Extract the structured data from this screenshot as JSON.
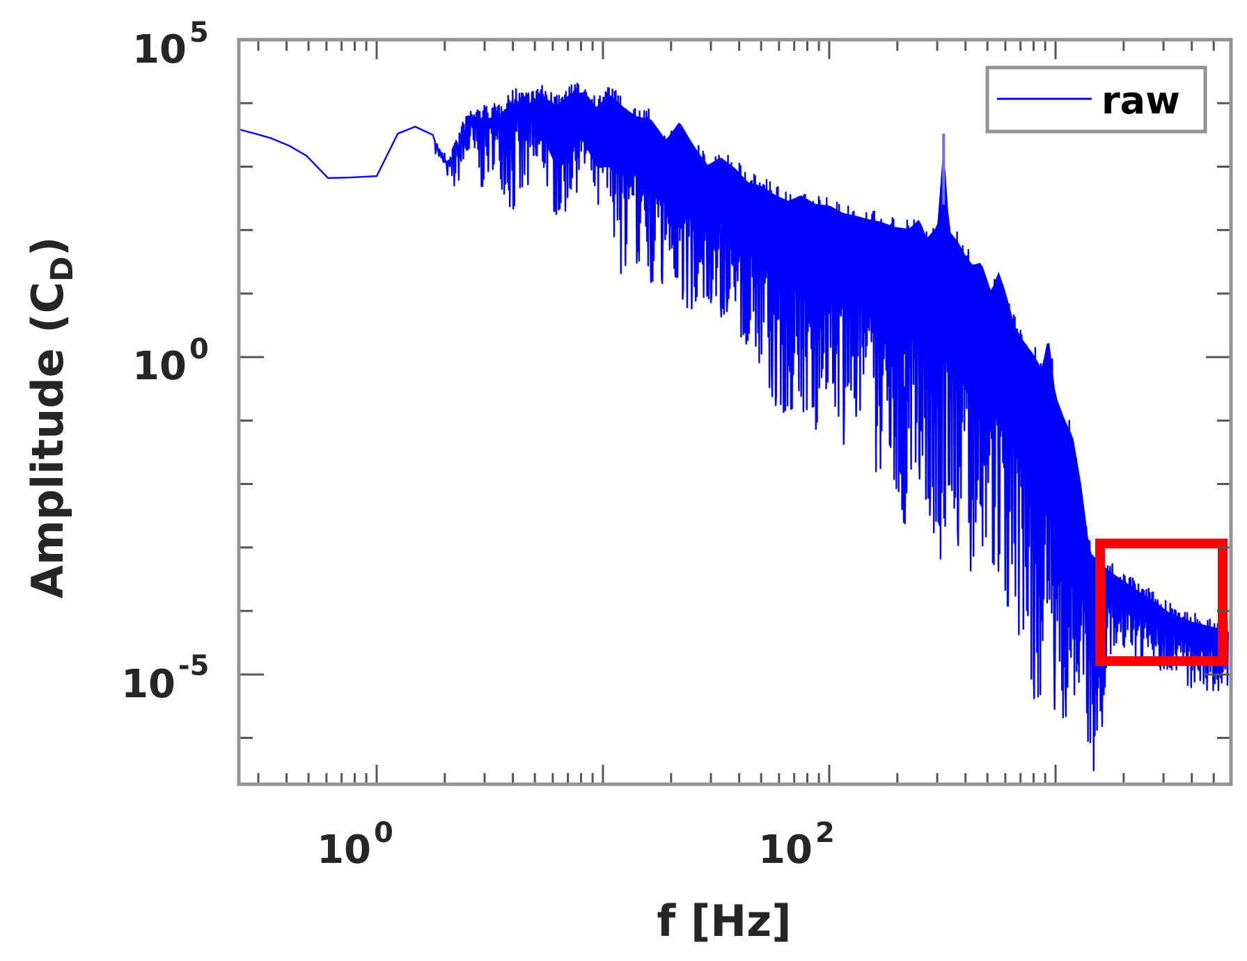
{
  "chart_data": {
    "type": "line",
    "title": "",
    "xlabel": "f [Hz]",
    "ylabel": "Amplitude (C_D)",
    "ylabel_main": "Amplitude (C",
    "ylabel_sub": "D",
    "ylabel_close": ")",
    "xscale": "log",
    "yscale": "log",
    "xlim": [
      0.246,
      5960
    ],
    "ylim_exponents": [
      -6.73,
      5
    ],
    "ylim": [
      1.86e-07,
      100000
    ],
    "grid": false,
    "legend": {
      "position": "upper right",
      "entries": [
        "raw"
      ]
    },
    "x_ticks": [
      {
        "base": "10",
        "exp": "0",
        "value": 1
      },
      {
        "base": "10",
        "exp": "2",
        "value": 100
      }
    ],
    "y_ticks": [
      {
        "base": "10",
        "exp": "5",
        "value": 100000
      },
      {
        "base": "10",
        "exp": "0",
        "value": 1
      },
      {
        "base": "10",
        "exp": "-5",
        "value": 1e-05
      }
    ],
    "series": [
      {
        "name": "raw",
        "color": "#0000ff",
        "note": "Log-log amplitude spectrum; points given as [f_Hz, log10(amplitude)] traced from the upper and lower envelope of a dense noisy trace",
        "upper_envelope": [
          [
            0.25,
            3.58
          ],
          [
            0.29,
            3.52
          ],
          [
            0.34,
            3.45
          ],
          [
            0.41,
            3.33
          ],
          [
            0.49,
            3.17
          ],
          [
            0.61,
            2.82
          ],
          [
            0.78,
            2.83
          ],
          [
            1.0,
            2.85
          ],
          [
            1.24,
            3.52
          ],
          [
            1.48,
            3.63
          ],
          [
            1.77,
            3.5
          ],
          [
            2.04,
            3.17
          ],
          [
            2.56,
            3.92
          ],
          [
            3.0,
            3.98
          ],
          [
            3.4,
            3.99
          ],
          [
            3.8,
            4.17
          ],
          [
            4.3,
            4.26
          ],
          [
            5.0,
            4.21
          ],
          [
            5.3,
            4.3
          ],
          [
            6.2,
            4.11
          ],
          [
            7.2,
            4.3
          ],
          [
            8.3,
            4.32
          ],
          [
            9.4,
            4.08
          ],
          [
            10.6,
            4.3
          ],
          [
            12.5,
            4.07
          ],
          [
            14.1,
            3.94
          ],
          [
            16.3,
            3.9
          ],
          [
            19.0,
            3.57
          ],
          [
            21.8,
            3.86
          ],
          [
            25.0,
            3.5
          ],
          [
            29.0,
            3.17
          ],
          [
            33.0,
            3.3
          ],
          [
            38.0,
            3.14
          ],
          [
            44.0,
            2.9
          ],
          [
            50.0,
            2.85
          ],
          [
            58.0,
            2.7
          ],
          [
            66.0,
            2.61
          ],
          [
            75.0,
            2.7
          ],
          [
            87.0,
            2.56
          ],
          [
            100.0,
            2.54
          ],
          [
            115.0,
            2.42
          ],
          [
            130.0,
            2.38
          ],
          [
            150.0,
            2.32
          ],
          [
            170.0,
            2.28
          ],
          [
            195.0,
            2.2
          ],
          [
            225.0,
            2.17
          ],
          [
            250.0,
            2.32
          ],
          [
            270.0,
            2.02
          ],
          [
            300.0,
            2.21
          ],
          [
            320.0,
            3.52
          ],
          [
            340.0,
            2.13
          ],
          [
            370.0,
            1.97
          ],
          [
            400.0,
            1.75
          ],
          [
            430.0,
            1.6
          ],
          [
            470.0,
            1.64
          ],
          [
            520.0,
            1.18
          ],
          [
            560.0,
            1.5
          ],
          [
            600.0,
            1.19
          ],
          [
            660.0,
            0.64
          ],
          [
            720.0,
            0.41
          ],
          [
            800.0,
            0.19
          ],
          [
            870.0,
            -0.04
          ],
          [
            930.0,
            0.5
          ],
          [
            1000.0,
            -0.45
          ],
          [
            1100.0,
            -0.84
          ],
          [
            1200.0,
            -1.14
          ],
          [
            1300.0,
            -1.87
          ],
          [
            1420.0,
            -2.93
          ],
          [
            1700.0,
            -3.2
          ],
          [
            2100.0,
            -3.43
          ],
          [
            2600.0,
            -3.65
          ],
          [
            3200.0,
            -3.88
          ],
          [
            4000.0,
            -4.02
          ],
          [
            5800.0,
            -4.16
          ]
        ],
        "lower_envelope": [
          [
            0.25,
            3.58
          ],
          [
            0.49,
            3.17
          ],
          [
            0.78,
            2.83
          ],
          [
            1.0,
            2.85
          ],
          [
            1.77,
            3.5
          ],
          [
            2.2,
            2.4
          ],
          [
            2.6,
            2.92
          ],
          [
            2.9,
            2.22
          ],
          [
            3.3,
            2.74
          ],
          [
            4.0,
            1.65
          ],
          [
            5.5,
            2.4
          ],
          [
            6.4,
            1.45
          ],
          [
            8.0,
            2.34
          ],
          [
            9.5,
            1.6
          ],
          [
            11.5,
            1.27
          ],
          [
            14.0,
            1.5
          ],
          [
            17.0,
            1.09
          ],
          [
            20.0,
            1.25
          ],
          [
            24.0,
            0.73
          ],
          [
            29.0,
            0.95
          ],
          [
            33.0,
            0.62
          ],
          [
            36.0,
            0.75
          ],
          [
            41.0,
            0.3
          ],
          [
            48.0,
            0.0
          ],
          [
            60.0,
            -0.9
          ],
          [
            75.0,
            -0.75
          ],
          [
            85.0,
            -1.3
          ],
          [
            100.0,
            -0.3
          ],
          [
            115.0,
            -1.4
          ],
          [
            130.0,
            -0.9
          ],
          [
            150.0,
            -1.3
          ],
          [
            170.0,
            -2.2
          ],
          [
            190.0,
            -1.8
          ],
          [
            215.0,
            -2.65
          ],
          [
            245.0,
            -1.8
          ],
          [
            275.0,
            -2.38
          ],
          [
            310.0,
            -3.5
          ],
          [
            350.0,
            -2.7
          ],
          [
            400.0,
            -3.3
          ],
          [
            470.0,
            -3.5
          ],
          [
            550.0,
            -3.75
          ],
          [
            650.0,
            -4.0
          ],
          [
            780.0,
            -5.4
          ],
          [
            900.0,
            -5.3
          ],
          [
            1050.0,
            -5.7
          ],
          [
            1200.0,
            -5.6
          ],
          [
            1520.0,
            -6.7
          ],
          [
            1600.0,
            -5.9
          ],
          [
            1700.0,
            -4.7
          ],
          [
            2100.0,
            -4.63
          ],
          [
            2600.0,
            -4.9
          ],
          [
            3200.0,
            -4.95
          ],
          [
            4000.0,
            -5.25
          ],
          [
            5800.0,
            -5.25
          ]
        ],
        "prominent_peak": {
          "f_hz": 320,
          "log10_amplitude": 3.52
        }
      }
    ],
    "annotations": [
      {
        "type": "rectangle",
        "color": "#ff0000",
        "description": "Red box highlighting the high-frequency tail",
        "f_range_hz": [
          1600,
          5900
        ],
        "log10_amplitude_range": [
          -3.0,
          -5.0
        ]
      }
    ]
  },
  "colors": {
    "line": "#0000ff",
    "axes": "#939393",
    "text": "#262626",
    "highlight": "#ff0000",
    "background": "#ffffff"
  }
}
